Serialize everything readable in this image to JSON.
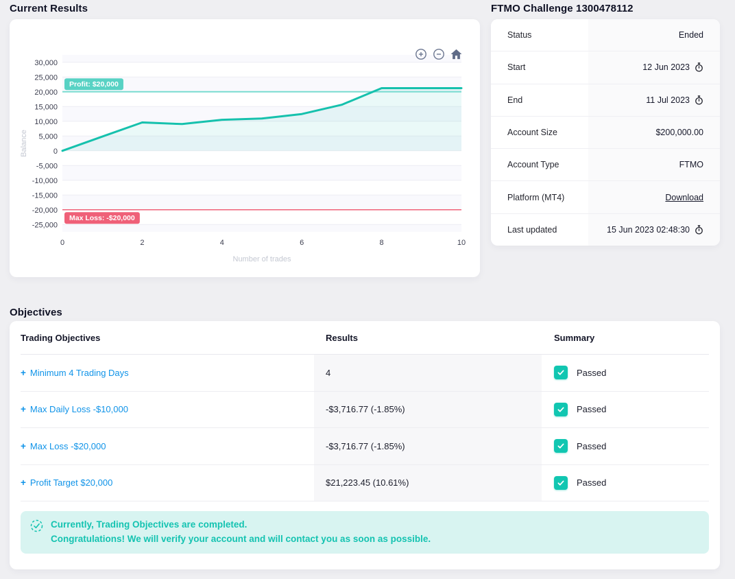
{
  "colors": {
    "accent_teal": "#16c1ad",
    "link_blue": "#0f93e8",
    "loss_red": "#ef6078",
    "banner_bg": "#d8f4f1",
    "banner_text": "#14c3b1",
    "checkbox_teal": "#11c6b1"
  },
  "current_results": {
    "title": "Current Results",
    "toolbar_icons": [
      "zoom-in-icon",
      "zoom-out-icon",
      "home-icon"
    ]
  },
  "chart_data": {
    "type": "line",
    "title": "",
    "xlabel": "Number of trades",
    "ylabel": "Balance",
    "x": [
      0,
      1,
      2,
      3,
      4,
      5,
      6,
      7,
      8,
      9,
      10
    ],
    "series": [
      {
        "name": "Balance",
        "color": "#16c1ad",
        "values": [
          0,
          4800,
          9600,
          9050,
          10500,
          10950,
          12450,
          15600,
          21223,
          21223,
          21223
        ]
      }
    ],
    "xlim": [
      0,
      10
    ],
    "ylim": [
      -27500,
      32500
    ],
    "xticks": [
      0,
      2,
      4,
      6,
      8,
      10
    ],
    "yticks": [
      30000,
      25000,
      20000,
      15000,
      10000,
      5000,
      0,
      -5000,
      -10000,
      -15000,
      -20000,
      -25000
    ],
    "grid": true,
    "legend": false,
    "plot_lines": [
      {
        "label": "Profit: $20,000",
        "value": 20000,
        "color": "#79dcd0",
        "label_bg": "#58d2c4"
      },
      {
        "label": "Max Loss: -$20,000",
        "value": -20000,
        "color": "#ef6078",
        "label_bg": "#ef6078"
      }
    ]
  },
  "challenge": {
    "title": "FTMO Challenge 1300478112",
    "rows": [
      {
        "label": "Status",
        "value": "Ended"
      },
      {
        "label": "Start",
        "value": "12 Jun 2023"
      },
      {
        "label": "End",
        "value": "11 Jul 2023"
      },
      {
        "label": "Account Size",
        "value": "$200,000.00"
      },
      {
        "label": "Account Type",
        "value": "FTMO"
      },
      {
        "label": "Platform (MT4)",
        "value": "Download"
      },
      {
        "label": "Last updated",
        "value": "15 Jun 2023 02:48:30"
      }
    ]
  },
  "objectives": {
    "title": "Objectives",
    "plus": "+",
    "headers": [
      "Trading Objectives",
      "Results",
      "Summary"
    ],
    "rows": [
      {
        "objective": "Minimum 4 Trading Days",
        "result": "4",
        "summary": "Passed"
      },
      {
        "objective": "Max Daily Loss -$10,000",
        "result": "-$3,716.77 (-1.85%)",
        "summary": "Passed"
      },
      {
        "objective": "Max Loss -$20,000",
        "result": "-$3,716.77 (-1.85%)",
        "summary": "Passed"
      },
      {
        "objective": "Profit Target $20,000",
        "result": "$21,223.45 (10.61%)",
        "summary": "Passed"
      }
    ],
    "banner": {
      "line1": "Currently, Trading Objectives are completed.",
      "line2": "Congratulations! We will verify your account and will contact you as soon as possible."
    }
  }
}
